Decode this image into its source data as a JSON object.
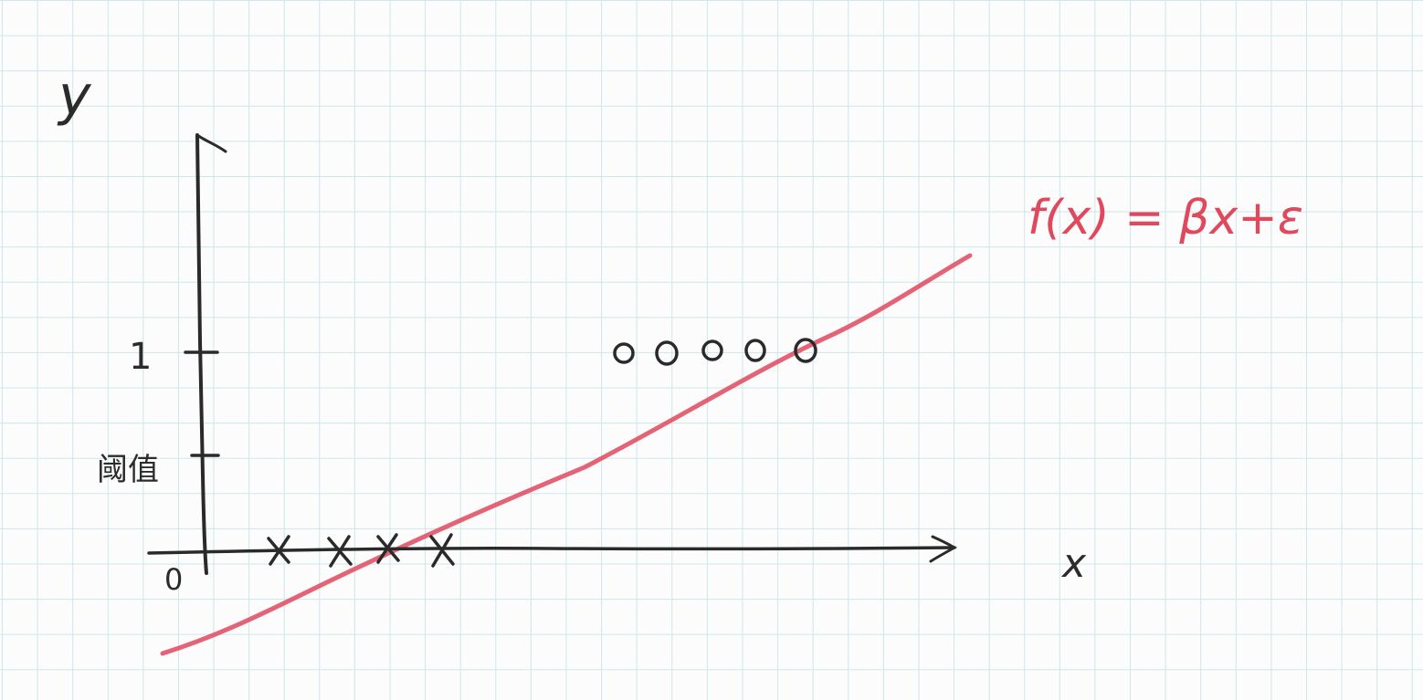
{
  "axes": {
    "y_label": "y",
    "x_label": "x",
    "origin_label": "0",
    "tick_one_label": "1",
    "threshold_label": "阈值"
  },
  "line": {
    "equation": "f(x) = βx+ε",
    "color": "#e0485e"
  },
  "markers": {
    "class_zero_symbol": "X",
    "class_zero_count": 4,
    "class_one_symbol": "o",
    "class_one_count": 5
  }
}
